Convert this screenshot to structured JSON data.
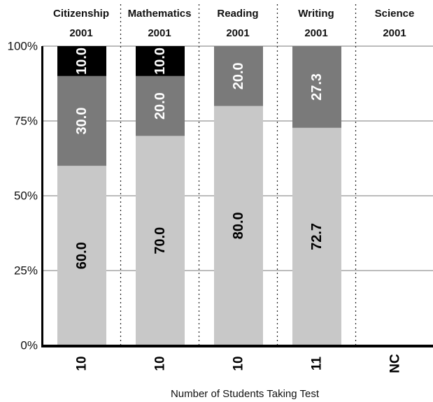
{
  "chart_data": {
    "type": "bar",
    "stacked": true,
    "categories": [
      {
        "subject": "Citizenship",
        "year": "2001",
        "n": "10"
      },
      {
        "subject": "Mathematics",
        "year": "2001",
        "n": "10"
      },
      {
        "subject": "Reading",
        "year": "2001",
        "n": "10"
      },
      {
        "subject": "Writing",
        "year": "2001",
        "n": "11"
      },
      {
        "subject": "Science",
        "year": "2001",
        "n": "NC"
      }
    ],
    "series": [
      {
        "color": "#c8c8c8",
        "values": [
          60.0,
          70.0,
          80.0,
          72.7,
          null
        ],
        "labels": [
          "60.0",
          "70.0",
          "80.0",
          "72.7",
          ""
        ]
      },
      {
        "color": "#7a7a7a",
        "values": [
          30.0,
          20.0,
          20.0,
          27.3,
          null
        ],
        "labels": [
          "30.0",
          "20.0",
          "20.0",
          "27.3",
          ""
        ]
      },
      {
        "color": "#000000",
        "values": [
          10.0,
          10.0,
          0,
          0,
          null
        ],
        "labels": [
          "10.0",
          "10.0",
          "",
          "",
          ""
        ]
      }
    ],
    "yticks": [
      "0%",
      "25%",
      "50%",
      "75%",
      "100%"
    ],
    "ylim": [
      0,
      100
    ],
    "xlabel": "Number of Students Taking Test",
    "grid": true
  }
}
